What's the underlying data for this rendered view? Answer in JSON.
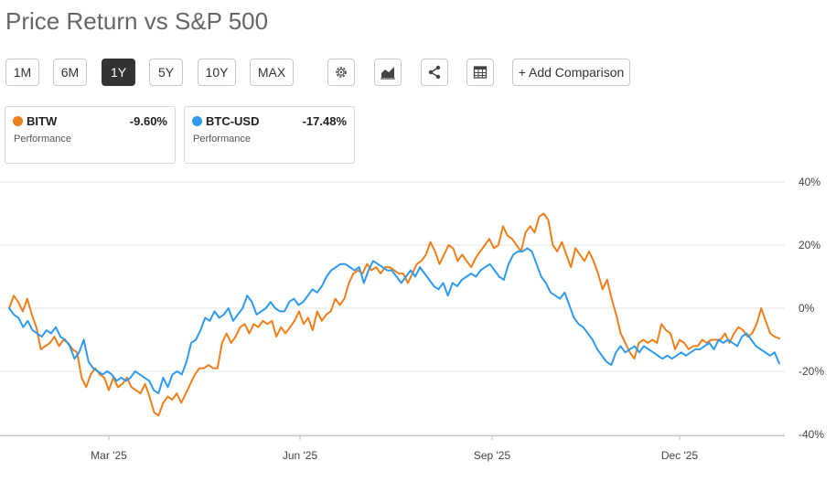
{
  "title": "Price Return vs S&P 500",
  "toolbar": {
    "ranges": [
      "1M",
      "6M",
      "1Y",
      "5Y",
      "10Y",
      "MAX"
    ],
    "active_range": "1Y",
    "icons": [
      "gear-icon",
      "chart-type-icon",
      "share-icon",
      "table-icon"
    ],
    "add_comparison": "+ Add Comparison"
  },
  "cards": [
    {
      "symbol": "BITW",
      "value": "-9.60%",
      "label": "Performance",
      "color": "#f07f1b"
    },
    {
      "symbol": "BTC-USD",
      "value": "-17.48%",
      "label": "Performance",
      "color": "#2f9bf0"
    }
  ],
  "chart_data": {
    "type": "line",
    "title": "",
    "xlabel": "",
    "ylabel": "",
    "x_ticks": [
      "Mar '25",
      "Jun '25",
      "Sep '25",
      "Dec '25"
    ],
    "y_ticks": [
      "40%",
      "20%",
      "0%",
      "-20%",
      "-40%"
    ],
    "ylim": [
      -40,
      40
    ],
    "grid": true,
    "series": [
      {
        "name": "BITW",
        "color": "#f07f1b",
        "values": [
          0,
          4,
          2,
          -1,
          3,
          -2,
          -6,
          -13,
          -12,
          -11,
          -9,
          -12,
          -10,
          -11,
          -13,
          -14,
          -22,
          -25,
          -21,
          -19,
          -21,
          -22,
          -26,
          -22,
          -25,
          -24,
          -22,
          -25,
          -26,
          -27,
          -24,
          -28,
          -33,
          -34,
          -30,
          -28,
          -29,
          -27,
          -30,
          -27,
          -24,
          -21,
          -19,
          -19,
          -18,
          -19,
          -19,
          -11,
          -8,
          -11,
          -9,
          -6,
          -5,
          -8,
          -5,
          -6,
          -4,
          -5,
          -4,
          -9,
          -6,
          -8,
          -6,
          -4,
          -1,
          -5,
          -3,
          -7,
          -1,
          -4,
          -2,
          -1,
          3,
          1,
          3,
          8,
          11,
          12,
          11,
          14,
          12,
          13,
          11,
          13,
          13,
          12,
          11,
          11,
          8,
          11,
          14,
          15,
          17,
          21,
          18,
          14,
          17,
          20,
          19,
          15,
          17,
          15,
          13,
          16,
          18,
          20,
          22,
          19,
          20,
          26,
          23,
          22,
          20,
          18,
          24,
          26,
          24,
          29,
          30,
          28,
          20,
          18,
          21,
          17,
          13,
          19,
          17,
          15,
          18,
          15,
          11,
          6,
          9,
          3,
          -2,
          -8,
          -11,
          -14,
          -16,
          -11,
          -10,
          -11,
          -10,
          -11,
          -5,
          -7,
          -8,
          -13,
          -10,
          -11,
          -13,
          -12,
          -12,
          -10,
          -11,
          -10,
          -10,
          -10,
          -8,
          -11,
          -8,
          -6,
          -7,
          -9,
          -8,
          -5,
          0,
          -4,
          -8,
          -9,
          -9.6
        ]
      },
      {
        "name": "BTC-USD",
        "color": "#2f9bf0",
        "values": [
          0,
          -2,
          -3,
          -6,
          -4,
          -7,
          -8,
          -9,
          -7,
          -8,
          -6,
          -9,
          -10,
          -12,
          -16,
          -14,
          -10,
          -17,
          -19,
          -20,
          -21,
          -20,
          -21,
          -23,
          -22,
          -23,
          -22,
          -20,
          -21,
          -22,
          -23,
          -26,
          -27,
          -22,
          -25,
          -21,
          -20,
          -21,
          -17,
          -11,
          -10,
          -7,
          -3,
          -4,
          -1,
          -3,
          -2,
          0,
          -4,
          -2,
          0,
          4,
          2,
          -2,
          -1,
          0,
          2,
          0,
          -1,
          -1,
          2,
          3,
          1,
          2,
          4,
          6,
          5,
          7,
          10,
          12,
          13,
          14,
          14,
          13,
          12,
          13,
          8,
          12,
          15,
          14,
          13,
          12,
          12,
          10,
          8,
          10,
          12,
          10,
          13,
          11,
          9,
          7,
          6,
          8,
          4,
          8,
          7,
          9,
          10,
          11,
          10,
          12,
          13,
          14,
          12,
          10,
          9,
          14,
          17,
          18,
          18,
          19,
          18,
          14,
          10,
          8,
          5,
          4,
          3,
          5,
          1,
          -3,
          -5,
          -6,
          -8,
          -10,
          -13,
          -15,
          -17,
          -18,
          -14,
          -12,
          -14,
          -13,
          -12,
          -14,
          -12,
          -13,
          -14,
          -15,
          -16,
          -15,
          -16,
          -15,
          -14,
          -15,
          -14,
          -13,
          -13,
          -12,
          -11,
          -13,
          -10,
          -11,
          -10,
          -11,
          -12,
          -9,
          -8,
          -10,
          -12,
          -13,
          -14,
          -15,
          -14,
          -17.5
        ]
      }
    ]
  }
}
